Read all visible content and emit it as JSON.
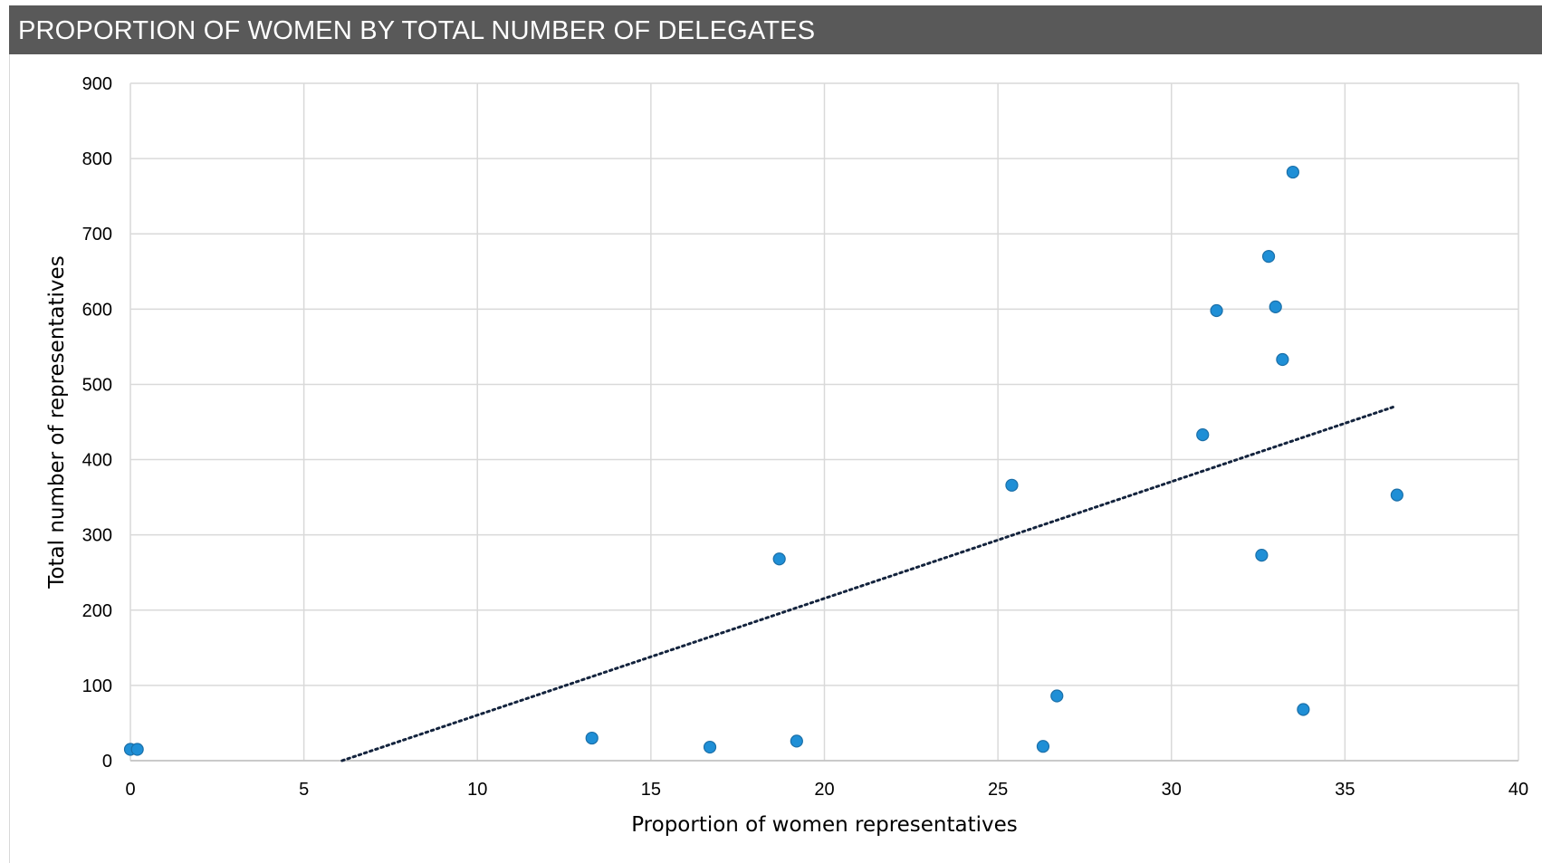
{
  "header": {
    "title": "PROPORTION OF WOMEN BY TOTAL NUMBER OF DELEGATES"
  },
  "colors": {
    "header_bg": "#595959",
    "point": "#1f8fd6",
    "point_stroke": "#1b6fa8",
    "grid": "#d9d9d9",
    "trendline": "#13233d"
  },
  "chart_data": {
    "type": "scatter",
    "title": "PROPORTION OF WOMEN BY TOTAL NUMBER OF DELEGATES",
    "xlabel": "Proportion of women representatives",
    "ylabel": "Total number of representatives",
    "xlim": [
      0,
      40
    ],
    "ylim": [
      0,
      900
    ],
    "xticks": [
      "0",
      "5",
      "10",
      "15",
      "20",
      "25",
      "30",
      "35",
      "40"
    ],
    "yticks": [
      "0",
      "100",
      "200",
      "300",
      "400",
      "500",
      "600",
      "700",
      "800",
      "900"
    ],
    "grid": true,
    "legend": false,
    "points": [
      {
        "x": 0.0,
        "y": 15
      },
      {
        "x": 0.2,
        "y": 15
      },
      {
        "x": 13.3,
        "y": 30
      },
      {
        "x": 16.7,
        "y": 18
      },
      {
        "x": 18.7,
        "y": 268
      },
      {
        "x": 19.2,
        "y": 26
      },
      {
        "x": 25.4,
        "y": 366
      },
      {
        "x": 26.3,
        "y": 19
      },
      {
        "x": 26.7,
        "y": 86
      },
      {
        "x": 30.9,
        "y": 433
      },
      {
        "x": 31.3,
        "y": 598
      },
      {
        "x": 32.6,
        "y": 273
      },
      {
        "x": 32.8,
        "y": 670
      },
      {
        "x": 33.0,
        "y": 603
      },
      {
        "x": 33.2,
        "y": 533
      },
      {
        "x": 33.5,
        "y": 782
      },
      {
        "x": 33.8,
        "y": 68
      },
      {
        "x": 36.5,
        "y": 353
      }
    ],
    "trendline": {
      "type": "linear",
      "style": "dotted",
      "x_range": [
        6.1,
        36.4
      ],
      "y_range": [
        0,
        470
      ]
    }
  }
}
